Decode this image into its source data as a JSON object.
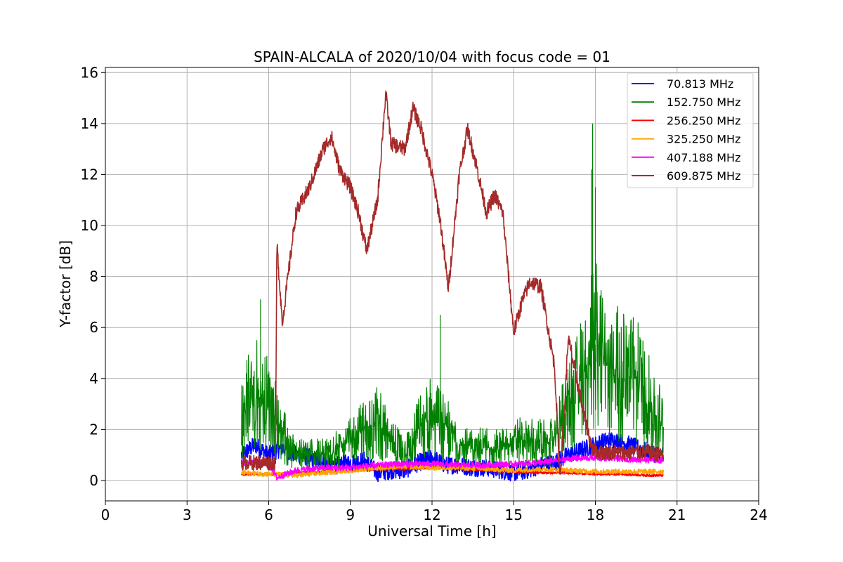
{
  "chart_data": {
    "type": "line",
    "title": "SPAIN-ALCALA of 2020/10/04 with focus code = 01",
    "xlabel": "Universal Time [h]",
    "ylabel": "Y-factor [dB]",
    "xlim": [
      0,
      24
    ],
    "ylim": [
      -0.8,
      16.2
    ],
    "xticks": [
      0,
      3,
      6,
      9,
      12,
      15,
      18,
      21,
      24
    ],
    "yticks": [
      0,
      2,
      4,
      6,
      8,
      10,
      12,
      14,
      16
    ],
    "grid": true,
    "legend_position": "top-right",
    "series": [
      {
        "name": " 70.813 MHz",
        "color": "#0000ff",
        "noise": 0.35,
        "x": [
          5.0,
          5.5,
          6.0,
          6.5,
          7.0,
          7.5,
          8.0,
          8.5,
          9.0,
          9.5,
          10.0,
          10.5,
          11.0,
          11.5,
          12.0,
          12.5,
          13.0,
          13.5,
          14.0,
          14.5,
          15.0,
          15.5,
          16.0,
          16.5,
          17.0,
          17.5,
          18.0,
          18.5,
          19.0,
          19.5,
          20.0,
          20.5
        ],
        "y": [
          1.0,
          1.4,
          1.0,
          1.3,
          1.0,
          0.9,
          0.7,
          0.6,
          0.7,
          0.8,
          0.3,
          0.4,
          0.4,
          0.7,
          0.9,
          0.6,
          0.6,
          0.5,
          0.5,
          0.4,
          0.3,
          0.4,
          0.6,
          0.7,
          1.0,
          1.2,
          1.4,
          1.6,
          1.5,
          1.3,
          1.1,
          1.0
        ]
      },
      {
        "name": "152.750 MHz",
        "color": "#008000",
        "noise": 1.6,
        "x": [
          5.0,
          5.5,
          6.0,
          6.5,
          7.0,
          7.5,
          8.0,
          8.5,
          9.0,
          9.5,
          10.0,
          10.5,
          11.0,
          11.5,
          12.0,
          12.5,
          13.0,
          13.5,
          14.0,
          14.5,
          15.0,
          15.5,
          16.0,
          16.5,
          17.0,
          17.5,
          18.0,
          18.5,
          19.0,
          19.5,
          20.0,
          20.5
        ],
        "y": [
          2.5,
          3.5,
          3.0,
          1.8,
          1.0,
          1.0,
          1.0,
          1.2,
          1.5,
          2.0,
          2.3,
          1.5,
          1.0,
          2.0,
          2.5,
          2.0,
          1.4,
          1.3,
          1.3,
          1.2,
          1.5,
          1.5,
          1.5,
          1.5,
          3.0,
          4.0,
          5.5,
          4.5,
          4.0,
          4.0,
          3.0,
          2.0
        ],
        "spikes": [
          {
            "x": 17.9,
            "y": 14.0
          },
          {
            "x": 17.85,
            "y": 12.2
          },
          {
            "x": 18.0,
            "y": 11.5
          },
          {
            "x": 5.7,
            "y": 7.1
          },
          {
            "x": 12.3,
            "y": 6.5
          }
        ]
      },
      {
        "name": "256.250 MHz",
        "color": "#ff0000",
        "noise": 0.05,
        "x": [
          5.0,
          6.0,
          7.0,
          8.0,
          9.0,
          10.0,
          11.0,
          12.0,
          13.0,
          14.0,
          15.0,
          16.0,
          17.0,
          18.0,
          19.0,
          20.0,
          20.5
        ],
        "y": [
          0.25,
          0.25,
          0.3,
          0.35,
          0.4,
          0.45,
          0.45,
          0.5,
          0.45,
          0.4,
          0.35,
          0.3,
          0.3,
          0.25,
          0.25,
          0.2,
          0.2
        ]
      },
      {
        "name": "325.250 MHz",
        "color": "#ffa500",
        "noise": 0.1,
        "x": [
          5.0,
          6.0,
          7.0,
          8.0,
          9.0,
          10.0,
          11.0,
          12.0,
          13.0,
          14.0,
          15.0,
          16.0,
          17.0,
          18.0,
          19.0,
          20.0,
          20.5
        ],
        "y": [
          0.3,
          0.25,
          0.2,
          0.3,
          0.4,
          0.5,
          0.55,
          0.5,
          0.5,
          0.45,
          0.4,
          0.45,
          0.4,
          0.35,
          0.35,
          0.35,
          0.35
        ]
      },
      {
        "name": "407.188 MHz",
        "color": "#ff00ff",
        "noise": 0.12,
        "x": [
          5.0,
          6.0,
          6.3,
          7.0,
          8.0,
          9.0,
          10.0,
          11.0,
          12.0,
          13.0,
          14.0,
          15.0,
          16.0,
          17.0,
          18.0,
          19.0,
          20.0,
          20.5
        ],
        "y": [
          0.7,
          0.7,
          0.1,
          0.4,
          0.5,
          0.5,
          0.6,
          0.65,
          0.65,
          0.6,
          0.6,
          0.65,
          0.7,
          0.85,
          0.9,
          0.85,
          0.8,
          0.8
        ]
      },
      {
        "name": "609.875 MHz",
        "color": "#a52a2a",
        "noise": 0.3,
        "x": [
          5.0,
          6.0,
          6.25,
          6.3,
          6.5,
          7.0,
          7.5,
          8.0,
          8.3,
          8.6,
          9.0,
          9.3,
          9.6,
          10.0,
          10.3,
          10.5,
          11.0,
          11.3,
          11.6,
          12.0,
          12.3,
          12.6,
          13.0,
          13.3,
          13.6,
          14.0,
          14.3,
          14.6,
          15.0,
          15.3,
          15.6,
          16.0,
          16.5,
          16.7,
          16.9,
          17.0,
          17.3,
          17.6,
          17.9,
          18.2,
          19.0,
          20.0,
          20.5
        ],
        "y": [
          0.7,
          0.7,
          0.7,
          9.3,
          6.2,
          10.5,
          11.5,
          13.0,
          13.5,
          12.2,
          11.5,
          10.5,
          9.0,
          11.0,
          15.2,
          13.2,
          13.0,
          14.6,
          13.8,
          12.0,
          10.2,
          7.5,
          12.0,
          13.8,
          12.5,
          10.5,
          11.2,
          10.5,
          5.8,
          7.0,
          7.8,
          7.6,
          4.5,
          0.1,
          3.5,
          5.6,
          4.0,
          2.5,
          1.2,
          1.1,
          1.1,
          1.1,
          1.0
        ]
      }
    ]
  }
}
